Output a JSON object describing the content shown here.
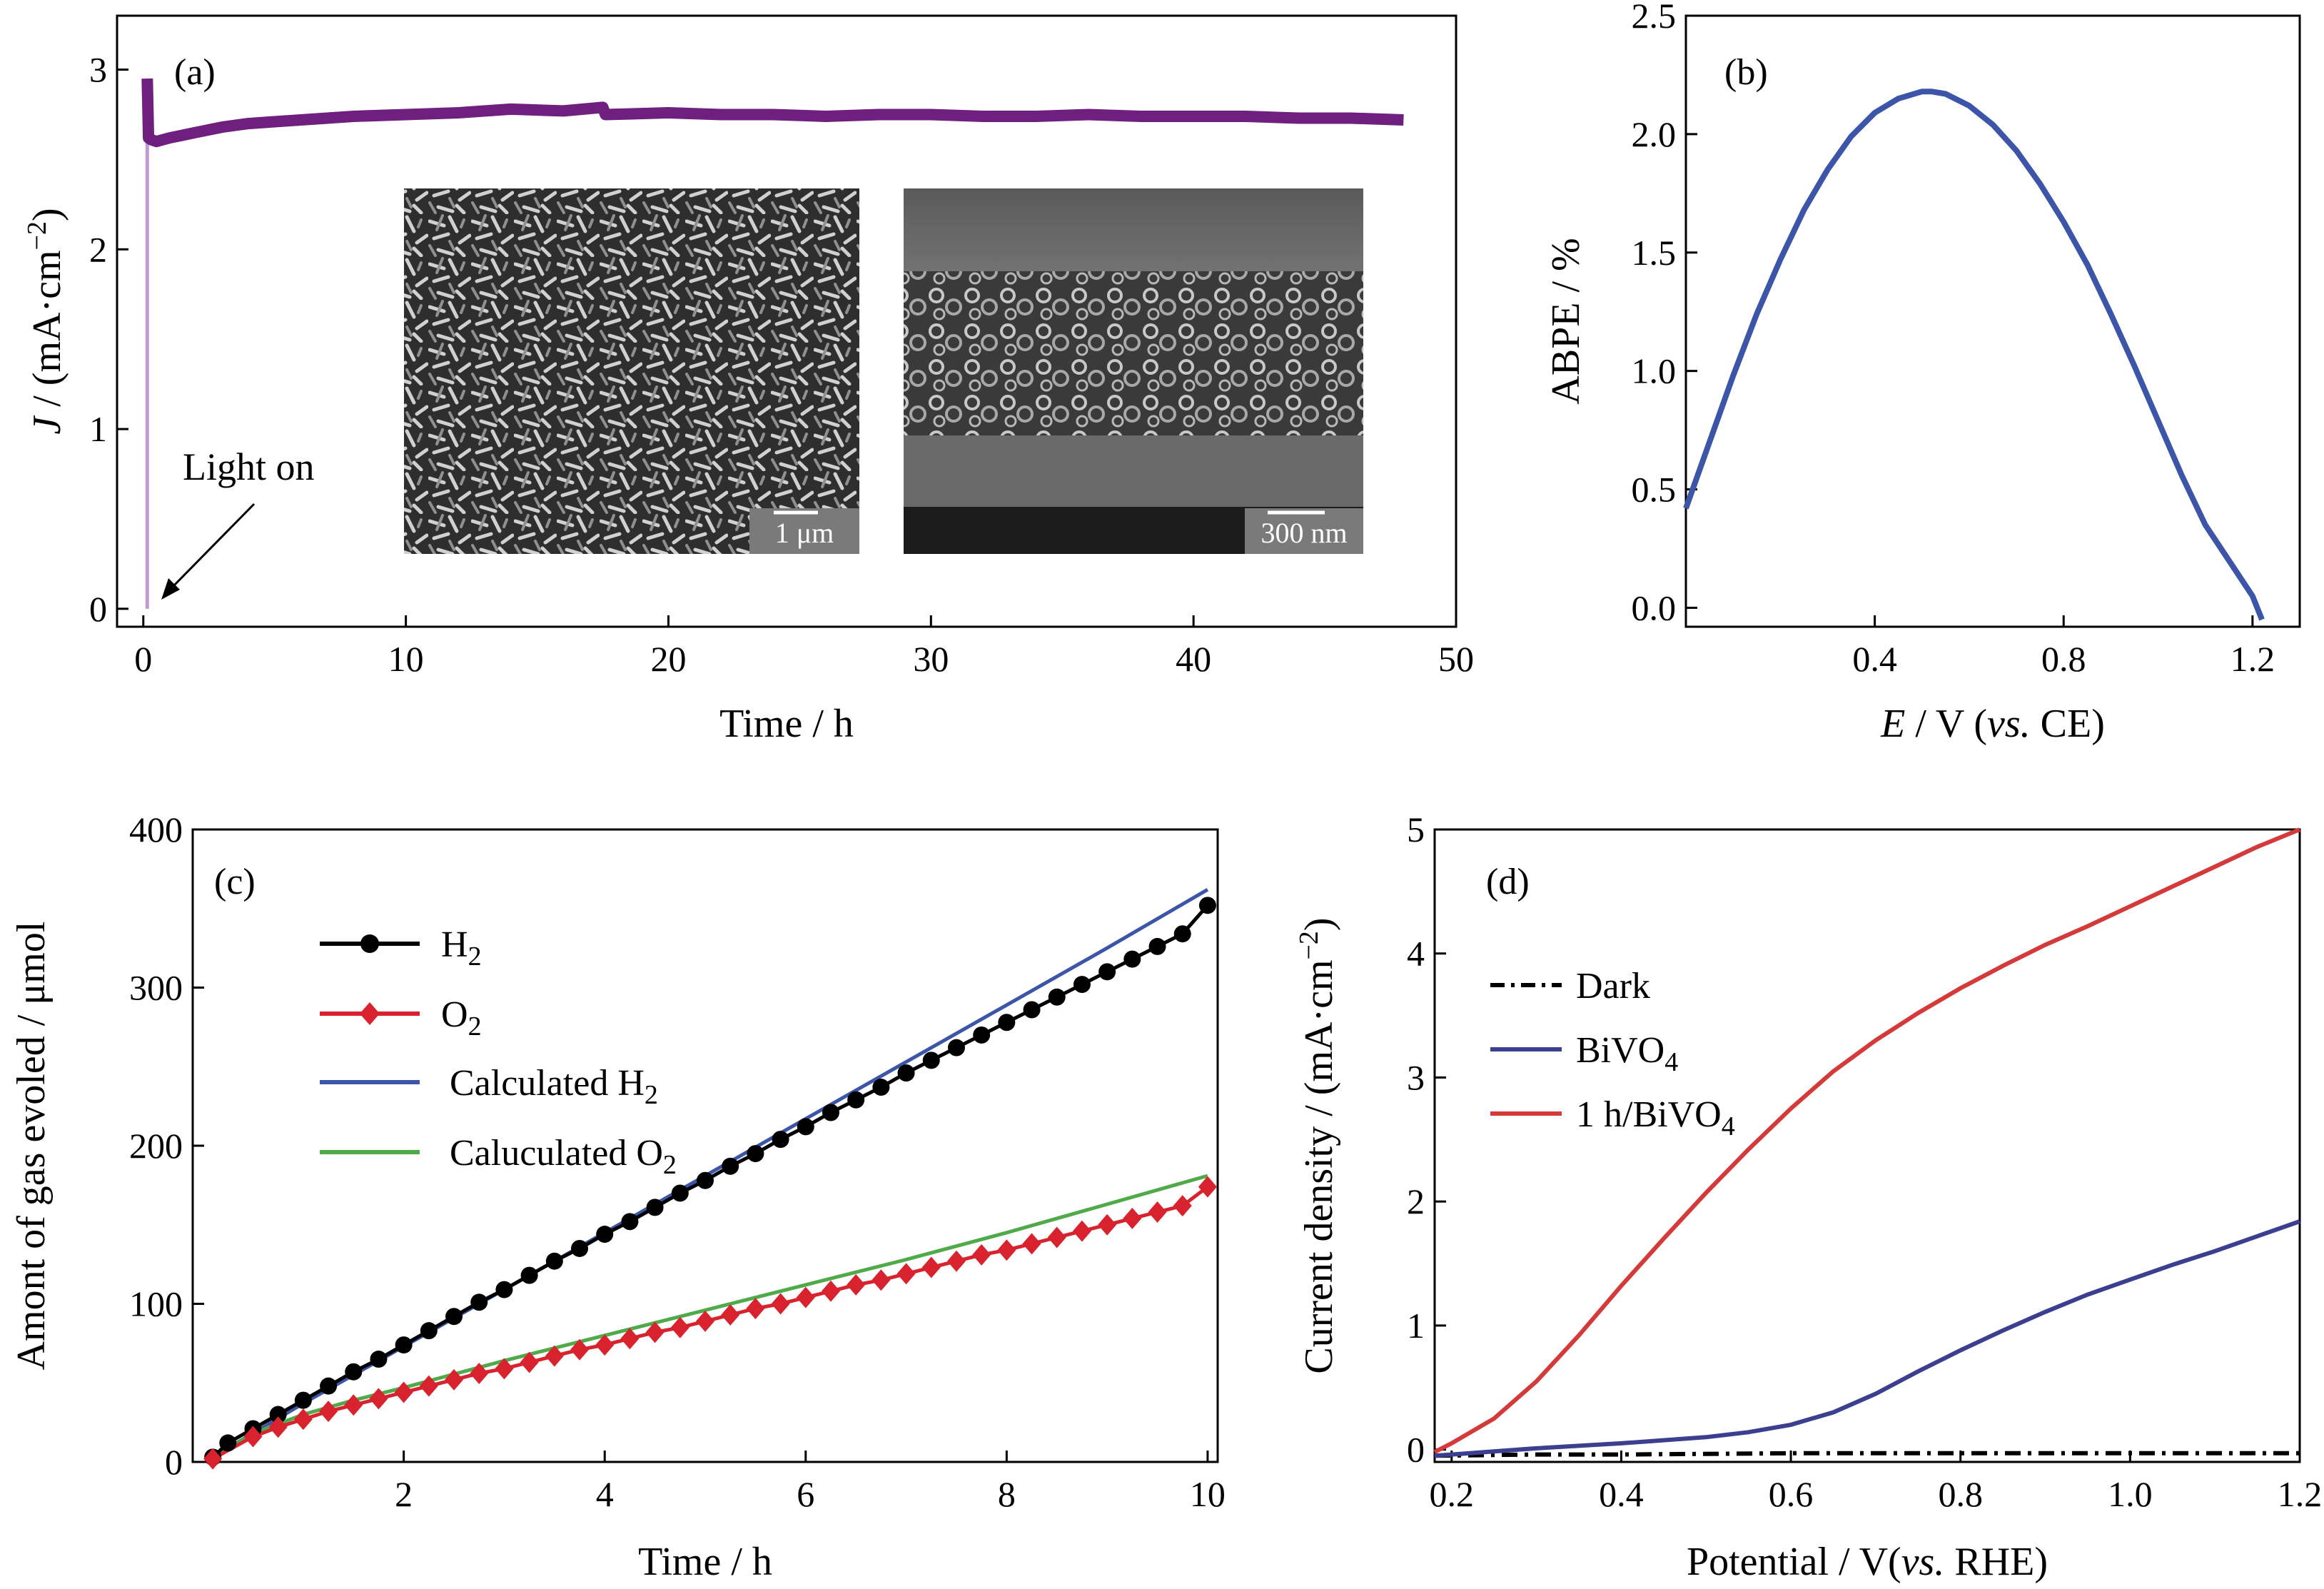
{
  "chart_data": [
    {
      "panel": "(a)",
      "type": "line",
      "xlabel": "Time / h",
      "ylabel_prefix": "J",
      "ylabel_unit": " / (mA·cm",
      "ylabel_sup": "−2",
      "ylabel_end": ")",
      "xlim": [
        -1,
        50
      ],
      "ylim": [
        -0.1,
        3.3
      ],
      "xticks": [
        0,
        10,
        20,
        30,
        40,
        50
      ],
      "yticks": [
        0,
        1,
        2,
        3
      ],
      "annotation": "Light on",
      "inset_scalebars": [
        "1 μm",
        "300 nm"
      ],
      "color": "#6f1f7e",
      "series": [
        {
          "x": [
            0.15,
            0.2,
            0.3,
            0.5,
            1,
            2,
            3,
            4,
            5,
            6,
            8,
            10,
            12,
            14,
            16,
            17.5,
            17.6,
            20,
            22,
            24,
            26,
            28,
            30,
            32,
            34,
            36,
            38,
            40,
            42,
            44,
            46,
            48
          ],
          "y": [
            2.95,
            2.62,
            2.61,
            2.6,
            2.62,
            2.65,
            2.68,
            2.7,
            2.71,
            2.72,
            2.74,
            2.75,
            2.76,
            2.78,
            2.77,
            2.79,
            2.75,
            2.76,
            2.75,
            2.75,
            2.74,
            2.75,
            2.75,
            2.74,
            2.74,
            2.75,
            2.74,
            2.74,
            2.74,
            2.73,
            2.73,
            2.72
          ]
        }
      ]
    },
    {
      "panel": "(b)",
      "type": "line",
      "xlabel_prefix": "E",
      "xlabel_mid": " / V (",
      "xlabel_italic": "vs.",
      "xlabel_end": " CE)",
      "ylabel": "ABPE / %",
      "xlim": [
        0,
        1.3
      ],
      "ylim": [
        -0.08,
        2.5
      ],
      "xticks": [
        "0.4",
        "0.8",
        "1.2"
      ],
      "yticks": [
        "0.0",
        "0.5",
        "1.0",
        "1.5",
        "2.0",
        "2.5"
      ],
      "color": "#3c55a8",
      "series": [
        {
          "x": [
            0.0,
            0.05,
            0.1,
            0.15,
            0.2,
            0.25,
            0.3,
            0.35,
            0.4,
            0.45,
            0.5,
            0.52,
            0.55,
            0.6,
            0.65,
            0.7,
            0.75,
            0.8,
            0.85,
            0.9,
            0.95,
            1.0,
            1.05,
            1.1,
            1.15,
            1.2,
            1.22
          ],
          "y": [
            0.42,
            0.7,
            0.98,
            1.24,
            1.47,
            1.68,
            1.85,
            1.99,
            2.09,
            2.15,
            2.18,
            2.18,
            2.17,
            2.12,
            2.04,
            1.93,
            1.79,
            1.63,
            1.45,
            1.24,
            1.02,
            0.79,
            0.56,
            0.35,
            0.2,
            0.05,
            -0.05
          ]
        }
      ]
    },
    {
      "panel": "(c)",
      "type": "line",
      "xlabel": "Time / h",
      "ylabel": "Amont of gas evoled / μmol",
      "xlim": [
        -0.1,
        10.1
      ],
      "ylim": [
        0,
        400
      ],
      "xticks": [
        2,
        4,
        6,
        8,
        10
      ],
      "yticks": [
        0,
        100,
        200,
        300,
        400
      ],
      "series": [
        {
          "name_main": "H",
          "name_sub": "2",
          "color": "#000000",
          "marker": "circle",
          "x": [
            0.1,
            0.25,
            0.5,
            0.75,
            1.0,
            1.25,
            1.5,
            1.75,
            2.0,
            2.25,
            2.5,
            2.75,
            3.0,
            3.25,
            3.5,
            3.75,
            4.0,
            4.25,
            4.5,
            4.75,
            5.0,
            5.25,
            5.5,
            5.75,
            6.0,
            6.25,
            6.5,
            6.75,
            7.0,
            7.25,
            7.5,
            7.75,
            8.0,
            8.25,
            8.5,
            8.75,
            9.0,
            9.25,
            9.5,
            9.75,
            10.0
          ],
          "y": [
            3,
            12,
            21,
            30,
            39,
            48,
            57,
            65,
            74,
            83,
            92,
            101,
            109,
            118,
            127,
            135,
            144,
            152,
            161,
            170,
            178,
            187,
            195,
            204,
            212,
            221,
            229,
            237,
            246,
            254,
            262,
            270,
            278,
            286,
            294,
            302,
            310,
            318,
            326,
            334,
            352
          ]
        },
        {
          "name_main": "O",
          "name_sub": "2",
          "color": "#d8232e",
          "marker": "diamond",
          "x": [
            0.1,
            0.5,
            0.75,
            1.0,
            1.25,
            1.5,
            1.75,
            2.0,
            2.25,
            2.5,
            2.75,
            3.0,
            3.25,
            3.5,
            3.75,
            4.0,
            4.25,
            4.5,
            4.75,
            5.0,
            5.25,
            5.5,
            5.75,
            6.0,
            6.25,
            6.5,
            6.75,
            7.0,
            7.25,
            7.5,
            7.75,
            8.0,
            8.25,
            8.5,
            8.75,
            9.0,
            9.25,
            9.5,
            9.75,
            10.0
          ],
          "y": [
            2,
            16,
            22,
            27,
            32,
            36,
            40,
            44,
            48,
            52,
            56,
            59,
            63,
            67,
            71,
            74,
            78,
            82,
            85,
            89,
            93,
            97,
            100,
            104,
            108,
            112,
            115,
            119,
            123,
            127,
            131,
            134,
            138,
            142,
            146,
            150,
            154,
            158,
            162,
            174
          ]
        },
        {
          "name_main": "Calculated H",
          "name_sub": "2",
          "color": "#3c55a8",
          "marker": "none",
          "x": [
            0.1,
            1,
            2,
            3,
            4,
            5,
            6,
            7,
            8,
            9,
            10
          ],
          "y": [
            3,
            37,
            73,
            109,
            145,
            181,
            217,
            253,
            289,
            325,
            362
          ]
        },
        {
          "name_main": "Caluculated O",
          "name_sub": "2",
          "color": "#4faa4a",
          "marker": "none",
          "x": [
            0.1,
            0.5,
            1,
            1.5,
            2,
            3,
            4,
            5,
            6,
            7,
            8,
            9,
            10
          ],
          "y": [
            2,
            18,
            30,
            39,
            47,
            64,
            80,
            96,
            112,
            128,
            145,
            163,
            181
          ]
        }
      ]
    },
    {
      "panel": "(d)",
      "type": "line",
      "xlabel_main": "Potential / V(",
      "xlabel_italic": "vs.",
      "xlabel_end": " RHE)",
      "ylabel_main": "Current density / (mA·cm",
      "ylabel_sup": "−2",
      "ylabel_end": ")",
      "xlim": [
        0.18,
        1.2
      ],
      "ylim": [
        -0.1,
        5
      ],
      "xticks": [
        "0.2",
        "0.4",
        "0.6",
        "0.8",
        "1.0",
        "1.2"
      ],
      "yticks": [
        "0",
        "1",
        "2",
        "3",
        "4",
        "5"
      ],
      "series": [
        {
          "name_main": "Dark",
          "name_sub": "",
          "color": "#000000",
          "dash": "dashdot",
          "x": [
            0.18,
            0.3,
            0.4,
            0.6,
            0.8,
            1.0,
            1.2
          ],
          "y": [
            -0.05,
            -0.04,
            -0.04,
            -0.03,
            -0.03,
            -0.03,
            -0.03
          ]
        },
        {
          "name_main": "BiVO",
          "name_sub": "4",
          "color": "#3c3f8f",
          "dash": "solid",
          "x": [
            0.18,
            0.2,
            0.3,
            0.4,
            0.5,
            0.55,
            0.6,
            0.65,
            0.7,
            0.75,
            0.8,
            0.85,
            0.9,
            0.95,
            1.0,
            1.05,
            1.1,
            1.15,
            1.2
          ],
          "y": [
            -0.05,
            -0.04,
            0.01,
            0.05,
            0.1,
            0.14,
            0.2,
            0.3,
            0.45,
            0.63,
            0.8,
            0.96,
            1.11,
            1.25,
            1.37,
            1.49,
            1.6,
            1.72,
            1.84
          ]
        },
        {
          "name_main": "1 h/BiVO",
          "name_sub": "4",
          "color": "#d43a3a",
          "dash": "solid",
          "x": [
            0.18,
            0.2,
            0.25,
            0.3,
            0.35,
            0.4,
            0.45,
            0.5,
            0.55,
            0.6,
            0.65,
            0.7,
            0.75,
            0.8,
            0.85,
            0.9,
            0.95,
            1.0,
            1.05,
            1.1,
            1.15,
            1.2
          ],
          "y": [
            -0.02,
            0.05,
            0.25,
            0.55,
            0.92,
            1.32,
            1.7,
            2.07,
            2.42,
            2.75,
            3.05,
            3.3,
            3.52,
            3.72,
            3.9,
            4.07,
            4.22,
            4.38,
            4.54,
            4.7,
            4.86,
            5.0
          ]
        }
      ]
    }
  ]
}
